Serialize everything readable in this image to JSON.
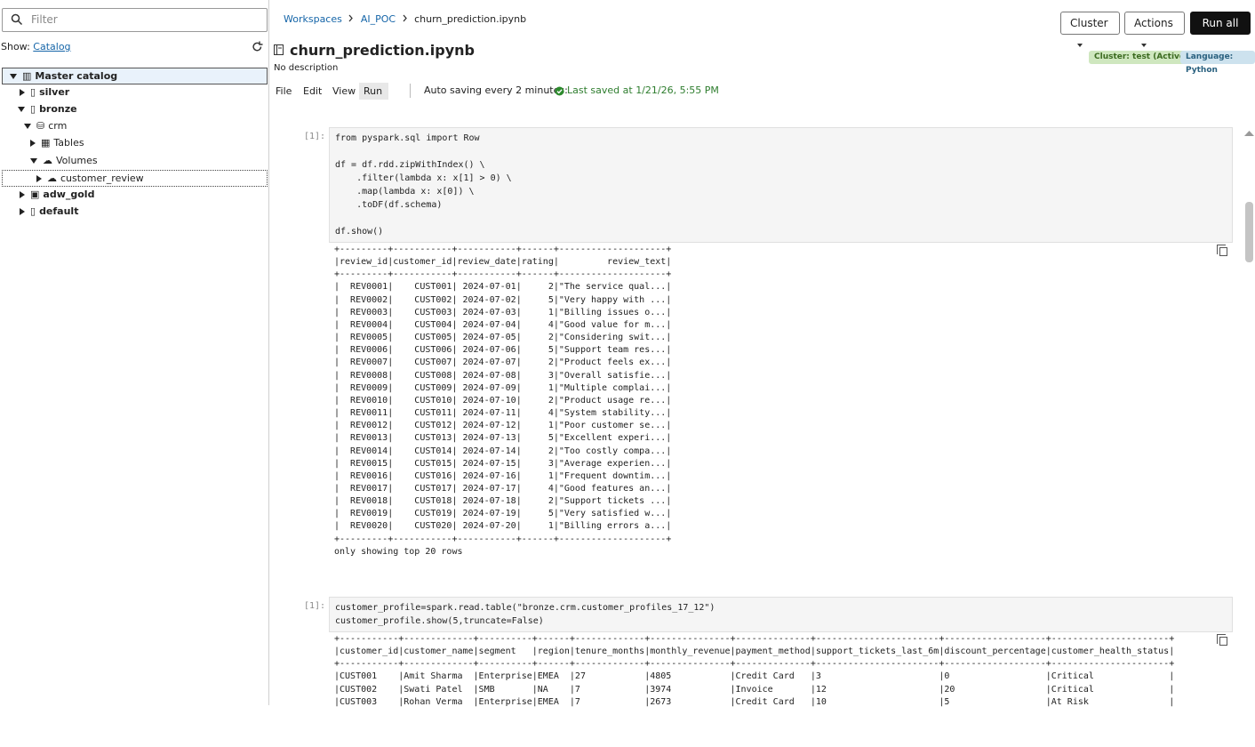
{
  "sidebar": {
    "filter_placeholder": "Filter",
    "show_label": "Show:",
    "show_link": "Catalog",
    "tree": [
      "Master catalog",
      "silver",
      "bronze",
      "crm",
      "Tables",
      "Volumes",
      "customer_review",
      "adw_gold",
      "default"
    ]
  },
  "breadcrumbs": [
    "Workspaces",
    "AI_POC",
    "churn_prediction.ipynb"
  ],
  "buttons": [
    "Cluster",
    "Actions",
    "Run all"
  ],
  "notebook": {
    "title": "churn_prediction.ipynb",
    "description": "No description",
    "badges": [
      "Cluster: test (Active)",
      "Language: Python"
    ],
    "menu": [
      "File",
      "Edit",
      "View",
      "Run"
    ],
    "autosave_label": "Auto saving every 2 minutes:",
    "last_saved": "Last saved at 1/21/26, 5:55 PM",
    "cells": [
      {
        "prompt": "[1]:",
        "code": "from pyspark.sql import Row\n\ndf = df.rdd.zipWithIndex() \\\n    .filter(lambda x: x[1] > 0) \\\n    .map(lambda x: x[0]) \\\n    .toDF(df.schema)\n\ndf.show()",
        "output": "+---------+-----------+-----------+------+--------------------+\n|review_id|customer_id|review_date|rating|         review_text|\n+---------+-----------+-----------+------+--------------------+\n|  REV0001|    CUST001| 2024-07-01|     2|\"The service qual...|\n|  REV0002|    CUST002| 2024-07-02|     5|\"Very happy with ...|\n|  REV0003|    CUST003| 2024-07-03|     1|\"Billing issues o...|\n|  REV0004|    CUST004| 2024-07-04|     4|\"Good value for m...|\n|  REV0005|    CUST005| 2024-07-05|     2|\"Considering swit...|\n|  REV0006|    CUST006| 2024-07-06|     5|\"Support team res...|\n|  REV0007|    CUST007| 2024-07-07|     2|\"Product feels ex...|\n|  REV0008|    CUST008| 2024-07-08|     3|\"Overall satisfie...|\n|  REV0009|    CUST009| 2024-07-09|     1|\"Multiple complai...|\n|  REV0010|    CUST010| 2024-07-10|     2|\"Product usage re...|\n|  REV0011|    CUST011| 2024-07-11|     4|\"System stability...|\n|  REV0012|    CUST012| 2024-07-12|     1|\"Poor customer se...|\n|  REV0013|    CUST013| 2024-07-13|     5|\"Excellent experi...|\n|  REV0014|    CUST014| 2024-07-14|     2|\"Too costly compa...|\n|  REV0015|    CUST015| 2024-07-15|     3|\"Average experien...|\n|  REV0016|    CUST016| 2024-07-16|     1|\"Frequent downtim...|\n|  REV0017|    CUST017| 2024-07-17|     4|\"Good features an...|\n|  REV0018|    CUST018| 2024-07-18|     2|\"Support tickets ...|\n|  REV0019|    CUST019| 2024-07-19|     5|\"Very satisfied w...|\n|  REV0020|    CUST020| 2024-07-20|     1|\"Billing errors a...|\n+---------+-----------+-----------+------+--------------------+\nonly showing top 20 rows"
      },
      {
        "prompt": "[1]:",
        "code": "customer_profile=spark.read.table(\"bronze.crm.customer_profiles_17_12\")\ncustomer_profile.show(5,truncate=False)",
        "output": "+-----------+-------------+----------+------+-------------+---------------+--------------+-----------------------+-------------------+----------------------+\n|customer_id|customer_name|segment   |region|tenure_months|monthly_revenue|payment_method|support_tickets_last_6m|discount_percentage|customer_health_status|\n+-----------+-------------+----------+------+-------------+---------------+--------------+-----------------------+-------------------+----------------------+\n|CUST001    |Amit Sharma  |Enterprise|EMEA  |27           |4805           |Credit Card   |3                      |0                  |Critical              |\n|CUST002    |Swati Patel  |SMB       |NA    |7            |3974           |Invoice       |12                     |20                 |Critical              |\n|CUST003    |Rohan Verma  |Enterprise|EMEA  |7            |2673           |Credit Card   |10                     |5                  |At Risk               |"
      }
    ]
  }
}
